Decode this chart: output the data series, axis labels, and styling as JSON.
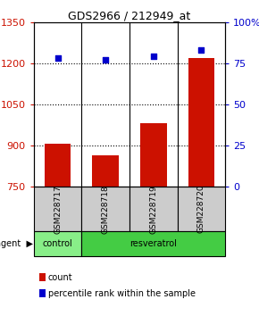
{
  "title": "GDS2966 / 212949_at",
  "samples": [
    "GSM228717",
    "GSM228718",
    "GSM228719",
    "GSM228720"
  ],
  "counts": [
    907,
    862,
    980,
    1220
  ],
  "percentiles": [
    78,
    77,
    79,
    83
  ],
  "ylim_left": [
    750,
    1350
  ],
  "ylim_right": [
    0,
    100
  ],
  "yticks_left": [
    750,
    900,
    1050,
    1200,
    1350
  ],
  "yticks_right": [
    0,
    25,
    50,
    75,
    100
  ],
  "ytick_labels_right": [
    "0",
    "25",
    "50",
    "75",
    "100%"
  ],
  "bar_color": "#cc1100",
  "dot_color": "#0000cc",
  "bar_width": 0.55,
  "sample_box_color": "#cccccc",
  "left_tick_color": "#cc1100",
  "right_tick_color": "#0000cc",
  "gridline_y": [
    900,
    1050,
    1200
  ],
  "ctrl_color": "#88ee88",
  "resv_color": "#44cc44"
}
